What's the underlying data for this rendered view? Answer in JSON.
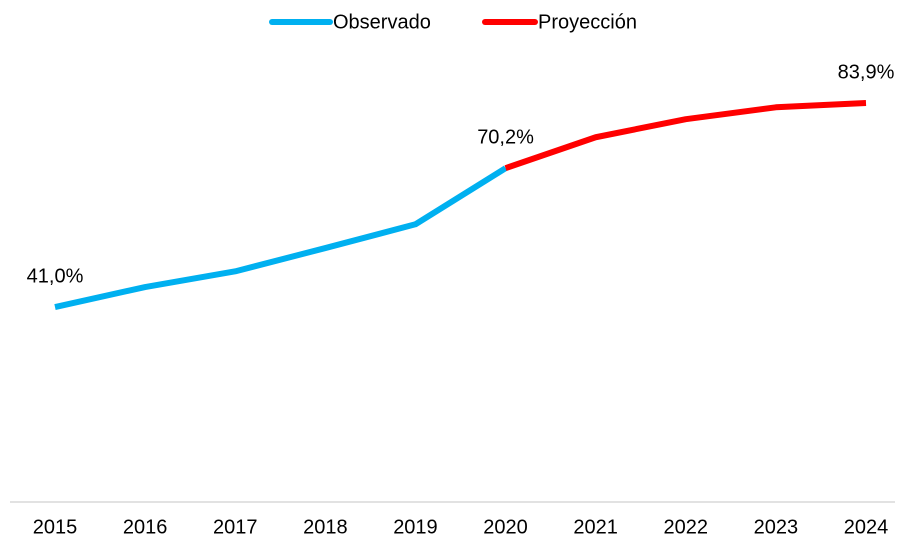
{
  "chart_data": {
    "type": "line",
    "categories": [
      "2015",
      "2016",
      "2017",
      "2018",
      "2019",
      "2020",
      "2021",
      "2022",
      "2023",
      "2024"
    ],
    "series": [
      {
        "name": "Observado",
        "color": "#00b0f0",
        "values": [
          41.0,
          45.2,
          48.5,
          53.4,
          58.4,
          70.2,
          null,
          null,
          null,
          null
        ],
        "value_labels": [
          "41,0%",
          null,
          null,
          null,
          null,
          "70,2%",
          null,
          null,
          null,
          null
        ]
      },
      {
        "name": "Proyección",
        "color": "#ff0000",
        "values": [
          null,
          null,
          null,
          null,
          null,
          70.2,
          76.7,
          80.5,
          83.0,
          83.9
        ],
        "value_labels": [
          null,
          null,
          null,
          null,
          null,
          null,
          null,
          null,
          null,
          "83,9%"
        ]
      }
    ],
    "ylim": [
      0,
      90
    ],
    "grid": false,
    "legend": "top"
  }
}
